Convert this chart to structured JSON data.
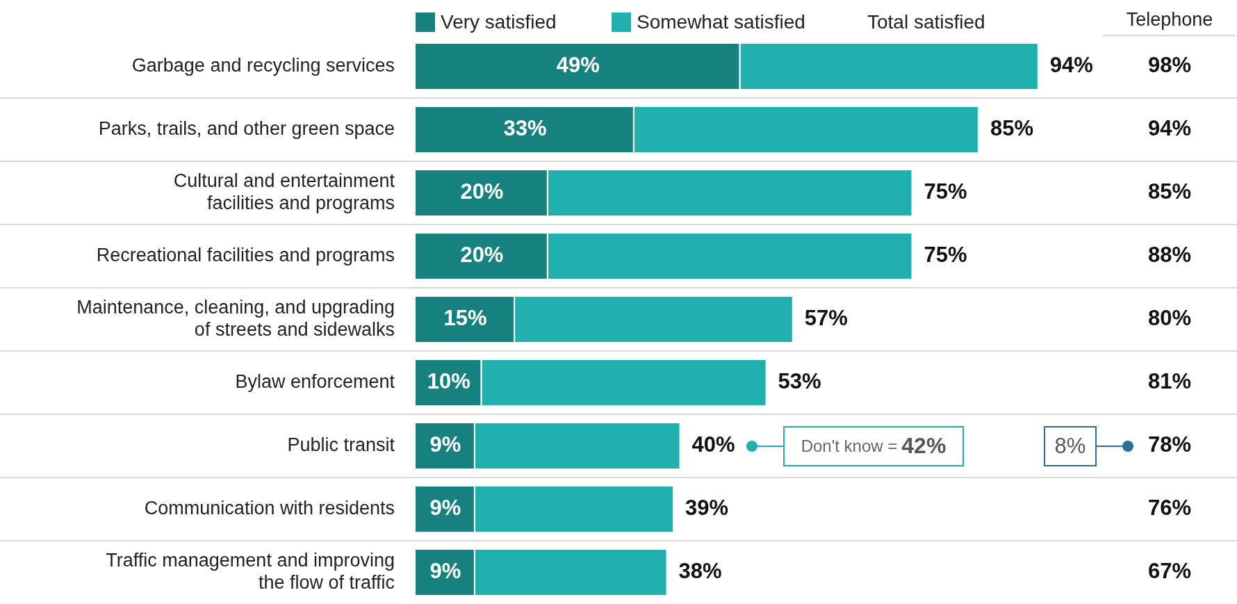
{
  "chart_data": {
    "type": "bar",
    "orientation": "horizontal",
    "stacked": true,
    "categories": [
      "Garbage and recycling services",
      "Parks, trails, and other green space",
      "Cultural and entertainment\nfacilities and programs",
      "Recreational facilities and programs",
      "Maintenance, cleaning, and upgrading\nof streets and sidewalks",
      "Bylaw enforcement",
      "Public transit",
      "Communication with residents",
      "Traffic management and improving\nthe flow of traffic"
    ],
    "series": [
      {
        "name": "Very satisfied",
        "color": "#17817f",
        "values": [
          49,
          33,
          20,
          20,
          15,
          10,
          9,
          9,
          9
        ],
        "value_labels": [
          "49%",
          "33%",
          "20%",
          "20%",
          "15%",
          "10%",
          "9%",
          "9%",
          "9%"
        ]
      },
      {
        "name": "Somewhat satisfied",
        "color": "#20b0ae",
        "values": [
          45,
          52,
          55,
          55,
          42,
          43,
          31,
          30,
          29
        ]
      }
    ],
    "totals": [
      "94%",
      "85%",
      "75%",
      "75%",
      "57%",
      "53%",
      "40%",
      "39%",
      "38%"
    ],
    "tick_labels": "y",
    "legend": "top",
    "annotations": [
      "Total satisfied",
      "Telephone",
      "98%",
      "94%",
      "85%",
      "88%",
      "80%",
      "81%",
      "78%",
      "76%",
      "67%",
      "Don't know = 42%",
      "8%"
    ]
  }
}
